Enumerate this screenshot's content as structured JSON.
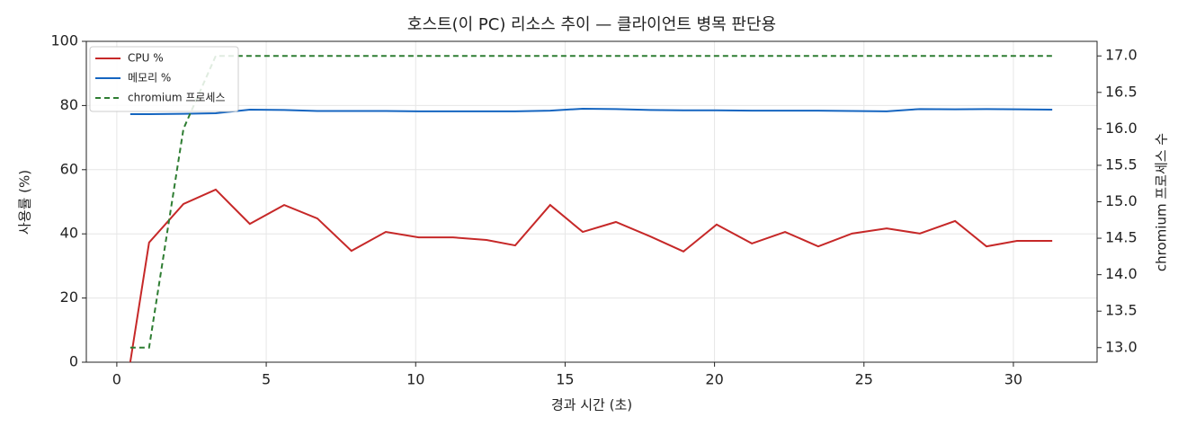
{
  "chart_data": {
    "type": "line",
    "title": "호스트(이 PC) 리소스 추이 — 클라이언트 병목 판단용",
    "xlabel": "경과 시간 (초)",
    "ylabel": "사용률 (%)",
    "y2label": "chromium 프로세스 수",
    "x": [
      0.45,
      1.08,
      2.23,
      3.31,
      4.45,
      5.6,
      6.71,
      7.85,
      9.0,
      10.1,
      11.25,
      12.37,
      13.33,
      14.5,
      15.59,
      16.7,
      17.85,
      18.96,
      20.07,
      21.25,
      22.36,
      23.47,
      24.6,
      25.76,
      26.87,
      28.05,
      29.1,
      30.12,
      31.3
    ],
    "series": [
      {
        "name": "CPU %",
        "color": "#c62828",
        "dash": false,
        "axis": "y",
        "values": [
          0,
          37.3,
          49.3,
          53.8,
          43.1,
          49.0,
          44.8,
          34.7,
          40.6,
          38.9,
          38.9,
          38.1,
          36.4,
          49.0,
          40.6,
          43.7,
          39.2,
          34.5,
          42.9,
          37.0,
          40.6,
          36.1,
          40.1,
          41.7,
          40.1,
          44.0,
          36.1,
          37.8,
          37.8
        ]
      },
      {
        "name": "메모리 %",
        "color": "#1565c0",
        "dash": false,
        "axis": "y",
        "values": [
          77.3,
          77.3,
          77.4,
          77.6,
          78.7,
          78.6,
          78.3,
          78.3,
          78.3,
          78.2,
          78.2,
          78.2,
          78.2,
          78.4,
          79.0,
          78.9,
          78.6,
          78.5,
          78.5,
          78.4,
          78.4,
          78.4,
          78.3,
          78.2,
          78.9,
          78.8,
          78.9,
          78.8,
          78.7
        ]
      },
      {
        "name": "chromium 프로세스",
        "color": "#2e7d32",
        "dash": true,
        "axis": "y2",
        "values": [
          13,
          13,
          16,
          17,
          17,
          17,
          17,
          17,
          17,
          17,
          17,
          17,
          17,
          17,
          17,
          17,
          17,
          17,
          17,
          17,
          17,
          17,
          17,
          17,
          17,
          17,
          17,
          17,
          17
        ]
      }
    ],
    "xlim": [
      -1.02,
      32.8
    ],
    "xticks": [
      0,
      5,
      10,
      15,
      20,
      25,
      30
    ],
    "ylim": [
      0,
      100
    ],
    "yticks": [
      0,
      20,
      40,
      60,
      80,
      100
    ],
    "y2lim": [
      12.8,
      17.2
    ],
    "y2ticks": [
      {
        "value": 13,
        "label": "13.0"
      },
      13.5,
      {
        "value": 14,
        "label": "14.0"
      },
      14.5,
      {
        "value": 15,
        "label": "15.0"
      },
      15.5,
      {
        "value": 16,
        "label": "16.0"
      },
      16.5,
      {
        "value": 17,
        "label": "17.0"
      }
    ],
    "grid": true,
    "legend": "upper left"
  }
}
